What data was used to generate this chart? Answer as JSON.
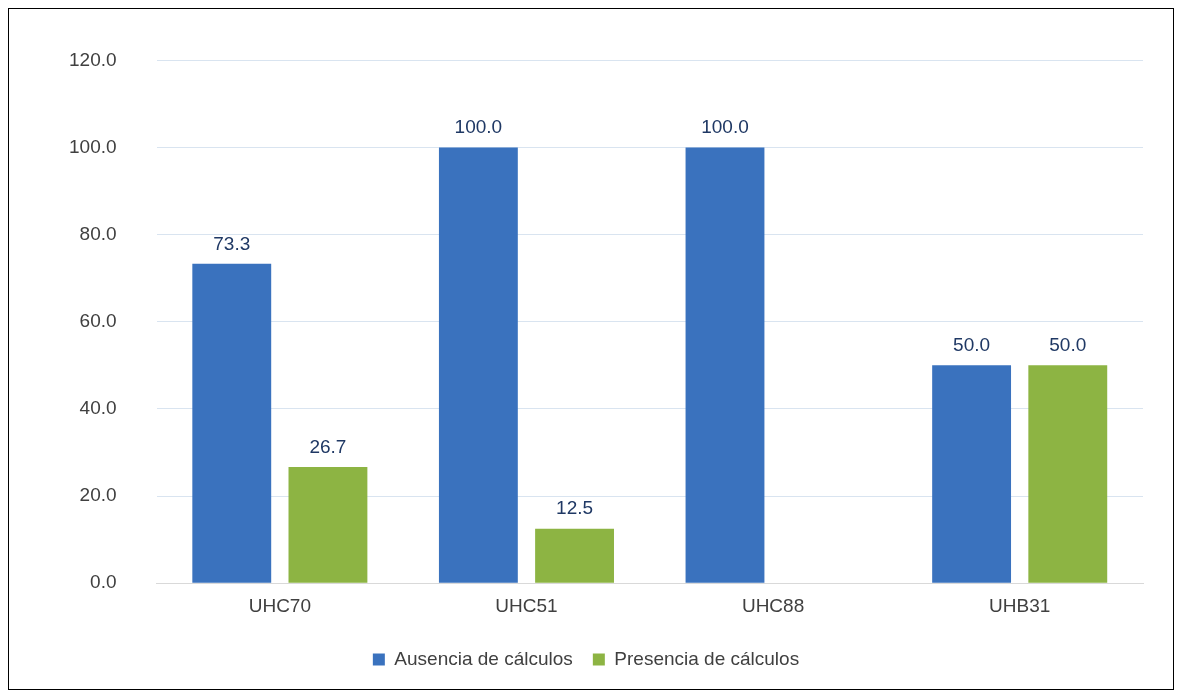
{
  "chart_data": {
    "type": "bar",
    "categories": [
      "UHC70",
      "UHC51",
      "UHC88",
      "UHB31"
    ],
    "series": [
      {
        "name": "Ausencia de cálculos",
        "color": "#3a72be",
        "values": [
          73.3,
          100,
          100,
          50
        ],
        "value_labels": [
          "73.3",
          "100.0",
          "100.0",
          "50.0"
        ]
      },
      {
        "name": "Presencia de cálculos",
        "color": "#8db443",
        "values": [
          26.7,
          12.5,
          null,
          50
        ],
        "value_labels": [
          "26.7",
          "12.5",
          null,
          "50.0"
        ]
      }
    ],
    "ylim": [
      0,
      120
    ],
    "yticks": [
      {
        "value": 0,
        "label": "0.0"
      },
      {
        "value": 20,
        "label": "20.0"
      },
      {
        "value": 40,
        "label": "40.0"
      },
      {
        "value": 60,
        "label": "60.0"
      },
      {
        "value": 80,
        "label": "80.0"
      },
      {
        "value": 100,
        "label": "100.0"
      },
      {
        "value": 120,
        "label": "120.0"
      }
    ],
    "grid": "y",
    "legend": "bottom"
  }
}
